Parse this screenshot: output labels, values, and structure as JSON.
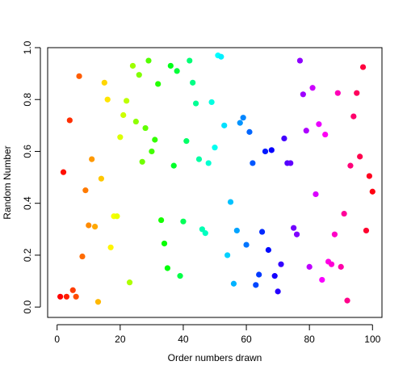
{
  "chart_data": {
    "type": "scatter",
    "title": "",
    "xlabel": "Order numbers drawn",
    "ylabel": "Random Number",
    "xlim": [
      -3,
      103
    ],
    "ylim": [
      -0.04,
      1.0
    ],
    "xticks": [
      0,
      20,
      40,
      60,
      80,
      100
    ],
    "xtick_labels": [
      "0",
      "20",
      "40",
      "60",
      "80",
      "100"
    ],
    "yticks": [
      0.0,
      0.2,
      0.4,
      0.6,
      0.8,
      1.0
    ],
    "ytick_labels": [
      "0.0",
      "0.2",
      "0.4",
      "0.6",
      "0.8",
      "1.0"
    ],
    "grid": false,
    "color_scheme": "rainbow",
    "x": [
      1,
      2,
      3,
      4,
      5,
      6,
      7,
      8,
      9,
      10,
      11,
      12,
      13,
      14,
      15,
      16,
      17,
      18,
      19,
      20,
      21,
      22,
      23,
      24,
      25,
      26,
      27,
      28,
      29,
      30,
      31,
      32,
      33,
      34,
      35,
      36,
      37,
      38,
      39,
      40,
      41,
      42,
      43,
      44,
      45,
      46,
      47,
      48,
      49,
      50,
      51,
      52,
      53,
      54,
      55,
      56,
      57,
      58,
      59,
      60,
      61,
      62,
      63,
      64,
      65,
      66,
      67,
      68,
      69,
      70,
      71,
      72,
      73,
      74,
      75,
      76,
      77,
      78,
      79,
      80,
      81,
      82,
      83,
      84,
      85,
      86,
      87,
      88,
      89,
      90,
      91,
      92,
      93,
      94,
      95,
      96,
      97,
      98,
      99,
      100
    ],
    "y": [
      0.04,
      0.52,
      0.04,
      0.72,
      0.065,
      0.04,
      0.89,
      0.195,
      0.45,
      0.315,
      0.57,
      0.31,
      0.02,
      0.495,
      0.865,
      0.8,
      0.23,
      0.35,
      0.35,
      0.655,
      0.74,
      0.795,
      0.095,
      0.93,
      0.715,
      0.895,
      0.56,
      0.69,
      0.95,
      0.6,
      0.645,
      0.86,
      0.335,
      0.245,
      0.15,
      0.93,
      0.545,
      0.91,
      0.12,
      0.33,
      0.64,
      0.95,
      0.865,
      0.785,
      0.57,
      0.3,
      0.285,
      0.555,
      0.79,
      0.615,
      0.97,
      0.965,
      0.7,
      0.2,
      0.405,
      0.09,
      0.295,
      0.71,
      0.73,
      0.24,
      0.675,
      0.555,
      0.085,
      0.125,
      0.29,
      0.6,
      0.22,
      0.605,
      0.12,
      0.06,
      0.165,
      0.65,
      0.555,
      0.555,
      0.305,
      0.28,
      0.95,
      0.82,
      0.68,
      0.155,
      0.845,
      0.435,
      0.705,
      0.105,
      0.665,
      0.175,
      0.165,
      0.28,
      0.825,
      0.155,
      0.36,
      0.025,
      0.545,
      0.735,
      0.825,
      0.58,
      0.925,
      0.295,
      0.505,
      0.445
    ],
    "colors": [
      "#FF0000",
      "#FF0F00",
      "#FF1F00",
      "#FF2E00",
      "#FF3D00",
      "#FF4D00",
      "#FF5C00",
      "#FF6B00",
      "#FF7A00",
      "#FF8A00",
      "#FF9900",
      "#FFA800",
      "#FFB800",
      "#FFC700",
      "#FFD600",
      "#FFE500",
      "#FFF500",
      "#F9FF00",
      "#EAFF00",
      "#DBFF00",
      "#CCFF00",
      "#BDFF00",
      "#ADFF00",
      "#9EFF00",
      "#8FFF00",
      "#80FF00",
      "#70FF00",
      "#61FF00",
      "#52FF00",
      "#42FF00",
      "#33FF00",
      "#24FF00",
      "#14FF00",
      "#05FF00",
      "#00FF0A",
      "#00FF19",
      "#00FF29",
      "#00FF38",
      "#00FF47",
      "#00FF57",
      "#00FF66",
      "#00FF75",
      "#00FF85",
      "#00FF94",
      "#00FFA3",
      "#00FFB2",
      "#00FFC2",
      "#00FFD1",
      "#00FFE0",
      "#00FFF0",
      "#00FFFF",
      "#00F0FF",
      "#00E0FF",
      "#00D1FF",
      "#00C2FF",
      "#00B2FF",
      "#00A3FF",
      "#0094FF",
      "#0085FF",
      "#0075FF",
      "#0066FF",
      "#0057FF",
      "#0047FF",
      "#0038FF",
      "#0029FF",
      "#0019FF",
      "#000AFF",
      "#0500FF",
      "#1400FF",
      "#2400FF",
      "#3300FF",
      "#4200FF",
      "#5200FF",
      "#6100FF",
      "#7000FF",
      "#8000FF",
      "#8F00FF",
      "#9E00FF",
      "#AD00FF",
      "#BD00FF",
      "#CC00FF",
      "#DB00FF",
      "#EA00FF",
      "#F900FF",
      "#FF00F5",
      "#FF00E6",
      "#FF00D6",
      "#FF00C7",
      "#FF00B8",
      "#FF00A8",
      "#FF0099",
      "#FF008A",
      "#FF007A",
      "#FF006B",
      "#FF005C",
      "#FF004D",
      "#FF003D",
      "#FF002E",
      "#FF001F",
      "#FF000F"
    ]
  }
}
